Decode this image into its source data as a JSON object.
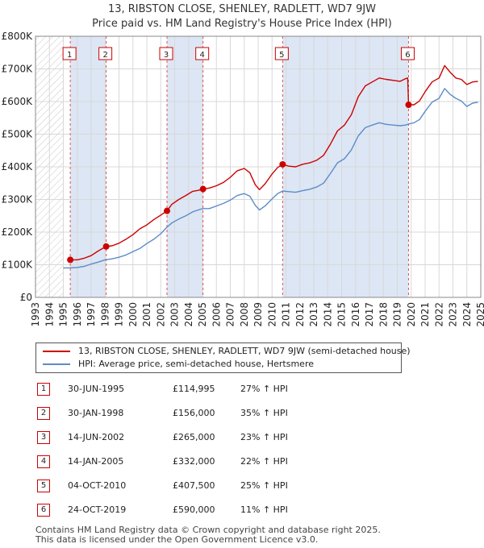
{
  "title_line1": "13, RIBSTON CLOSE, SHENLEY, RADLETT, WD7 9JW",
  "title_line2": "Price paid vs. HM Land Registry's House Price Index (HPI)",
  "legend": {
    "property": "13, RIBSTON CLOSE, SHENLEY, RADLETT, WD7 9JW (semi-detached house)",
    "hpi": "HPI: Average price, semi-detached house, Hertsmere"
  },
  "transactions": [
    {
      "num": "1",
      "date": "30-JUN-1995",
      "price": "£114,995",
      "hpi": "27% ↑ HPI"
    },
    {
      "num": "2",
      "date": "30-JAN-1998",
      "price": "£156,000",
      "hpi": "35% ↑ HPI"
    },
    {
      "num": "3",
      "date": "14-JUN-2002",
      "price": "£265,000",
      "hpi": "23% ↑ HPI"
    },
    {
      "num": "4",
      "date": "14-JAN-2005",
      "price": "£332,000",
      "hpi": "22% ↑ HPI"
    },
    {
      "num": "5",
      "date": "04-OCT-2010",
      "price": "£407,500",
      "hpi": "25% ↑ HPI"
    },
    {
      "num": "6",
      "date": "24-OCT-2019",
      "price": "£590,000",
      "hpi": "11% ↑ HPI"
    }
  ],
  "footer_line1": "Contains HM Land Registry data © Crown copyright and database right 2025.",
  "footer_line2": "This data is licensed under the Open Government Licence v3.0.",
  "chart_data": {
    "type": "line",
    "xlim": [
      1993,
      2025
    ],
    "ylim": [
      0,
      800000
    ],
    "y_ticks": [
      0,
      100000,
      200000,
      300000,
      400000,
      500000,
      600000,
      700000,
      800000
    ],
    "y_tick_labels": [
      "£0",
      "£100K",
      "£200K",
      "£300K",
      "£400K",
      "£500K",
      "£600K",
      "£700K",
      "£800K"
    ],
    "x_ticks": [
      1993,
      1994,
      1995,
      1996,
      1997,
      1998,
      1999,
      2000,
      2001,
      2002,
      2003,
      2004,
      2005,
      2006,
      2007,
      2008,
      2009,
      2010,
      2011,
      2012,
      2013,
      2014,
      2015,
      2016,
      2017,
      2018,
      2019,
      2020,
      2021,
      2022,
      2023,
      2024,
      2025
    ],
    "grid": true,
    "hatched_region_before": 1995.0,
    "colors": {
      "property": "#cc0000",
      "hpi": "#5b8cc8",
      "shade": "#dde6f4",
      "grid": "#d8d8d8"
    },
    "sales": [
      {
        "num": "1",
        "x": 1995.5,
        "y": 114995
      },
      {
        "num": "2",
        "x": 1998.08,
        "y": 156000
      },
      {
        "num": "3",
        "x": 2002.45,
        "y": 265000
      },
      {
        "num": "4",
        "x": 2005.04,
        "y": 332000
      },
      {
        "num": "5",
        "x": 2010.76,
        "y": 407500
      },
      {
        "num": "6",
        "x": 2019.81,
        "y": 590000
      }
    ],
    "series": [
      {
        "key": "property",
        "points": [
          [
            1995.5,
            114995
          ],
          [
            1996.0,
            115000
          ],
          [
            1996.5,
            120000
          ],
          [
            1997.0,
            128000
          ],
          [
            1997.5,
            142000
          ],
          [
            1998.08,
            156000
          ],
          [
            1998.5,
            158000
          ],
          [
            1999.0,
            166000
          ],
          [
            1999.5,
            178000
          ],
          [
            2000.0,
            192000
          ],
          [
            2000.5,
            210000
          ],
          [
            2001.0,
            222000
          ],
          [
            2001.5,
            238000
          ],
          [
            2002.0,
            252000
          ],
          [
            2002.45,
            265000
          ],
          [
            2002.8,
            285000
          ],
          [
            2003.3,
            300000
          ],
          [
            2003.8,
            312000
          ],
          [
            2004.3,
            325000
          ],
          [
            2004.7,
            328000
          ],
          [
            2005.04,
            332000
          ],
          [
            2005.5,
            335000
          ],
          [
            2006.0,
            342000
          ],
          [
            2006.5,
            352000
          ],
          [
            2007.0,
            368000
          ],
          [
            2007.5,
            388000
          ],
          [
            2008.0,
            395000
          ],
          [
            2008.4,
            382000
          ],
          [
            2008.8,
            345000
          ],
          [
            2009.1,
            330000
          ],
          [
            2009.5,
            348000
          ],
          [
            2010.0,
            378000
          ],
          [
            2010.4,
            398000
          ],
          [
            2010.76,
            407500
          ],
          [
            2011.2,
            402000
          ],
          [
            2011.7,
            400000
          ],
          [
            2012.2,
            408000
          ],
          [
            2012.7,
            412000
          ],
          [
            2013.2,
            420000
          ],
          [
            2013.7,
            435000
          ],
          [
            2014.2,
            470000
          ],
          [
            2014.7,
            510000
          ],
          [
            2015.2,
            528000
          ],
          [
            2015.7,
            560000
          ],
          [
            2016.2,
            615000
          ],
          [
            2016.7,
            648000
          ],
          [
            2017.2,
            660000
          ],
          [
            2017.7,
            672000
          ],
          [
            2018.2,
            668000
          ],
          [
            2018.7,
            665000
          ],
          [
            2019.2,
            662000
          ],
          [
            2019.6,
            670000
          ],
          [
            2019.75,
            672000
          ],
          [
            2019.81,
            590000
          ],
          [
            2020.2,
            590000
          ],
          [
            2020.6,
            602000
          ],
          [
            2021.0,
            630000
          ],
          [
            2021.5,
            660000
          ],
          [
            2022.0,
            672000
          ],
          [
            2022.4,
            710000
          ],
          [
            2022.8,
            690000
          ],
          [
            2023.2,
            672000
          ],
          [
            2023.6,
            668000
          ],
          [
            2024.0,
            652000
          ],
          [
            2024.4,
            660000
          ],
          [
            2024.8,
            662000
          ]
        ]
      },
      {
        "key": "hpi",
        "points": [
          [
            1995.0,
            90000
          ],
          [
            1995.5,
            90500
          ],
          [
            1996.0,
            91500
          ],
          [
            1996.5,
            95000
          ],
          [
            1997.0,
            102000
          ],
          [
            1997.5,
            108000
          ],
          [
            1998.0,
            115000
          ],
          [
            1998.5,
            118000
          ],
          [
            1999.0,
            123000
          ],
          [
            1999.5,
            130000
          ],
          [
            2000.0,
            140000
          ],
          [
            2000.5,
            150000
          ],
          [
            2001.0,
            165000
          ],
          [
            2001.5,
            178000
          ],
          [
            2002.0,
            195000
          ],
          [
            2002.45,
            215000
          ],
          [
            2002.8,
            228000
          ],
          [
            2003.3,
            240000
          ],
          [
            2003.8,
            250000
          ],
          [
            2004.3,
            262000
          ],
          [
            2004.7,
            268000
          ],
          [
            2005.04,
            272000
          ],
          [
            2005.5,
            272000
          ],
          [
            2006.0,
            280000
          ],
          [
            2006.5,
            288000
          ],
          [
            2007.0,
            298000
          ],
          [
            2007.5,
            312000
          ],
          [
            2008.0,
            318000
          ],
          [
            2008.4,
            310000
          ],
          [
            2008.8,
            282000
          ],
          [
            2009.1,
            268000
          ],
          [
            2009.5,
            280000
          ],
          [
            2010.0,
            302000
          ],
          [
            2010.4,
            318000
          ],
          [
            2010.76,
            326000
          ],
          [
            2011.2,
            324000
          ],
          [
            2011.7,
            322000
          ],
          [
            2012.2,
            327000
          ],
          [
            2012.7,
            331000
          ],
          [
            2013.2,
            338000
          ],
          [
            2013.7,
            350000
          ],
          [
            2014.2,
            380000
          ],
          [
            2014.7,
            412000
          ],
          [
            2015.2,
            425000
          ],
          [
            2015.7,
            452000
          ],
          [
            2016.2,
            495000
          ],
          [
            2016.7,
            520000
          ],
          [
            2017.2,
            528000
          ],
          [
            2017.7,
            535000
          ],
          [
            2018.2,
            530000
          ],
          [
            2018.7,
            528000
          ],
          [
            2019.2,
            526000
          ],
          [
            2019.6,
            528000
          ],
          [
            2019.81,
            531000
          ],
          [
            2020.2,
            535000
          ],
          [
            2020.6,
            545000
          ],
          [
            2021.0,
            570000
          ],
          [
            2021.5,
            598000
          ],
          [
            2022.0,
            610000
          ],
          [
            2022.4,
            640000
          ],
          [
            2022.8,
            622000
          ],
          [
            2023.2,
            610000
          ],
          [
            2023.6,
            602000
          ],
          [
            2024.0,
            585000
          ],
          [
            2024.4,
            595000
          ],
          [
            2024.8,
            598000
          ]
        ]
      }
    ]
  }
}
